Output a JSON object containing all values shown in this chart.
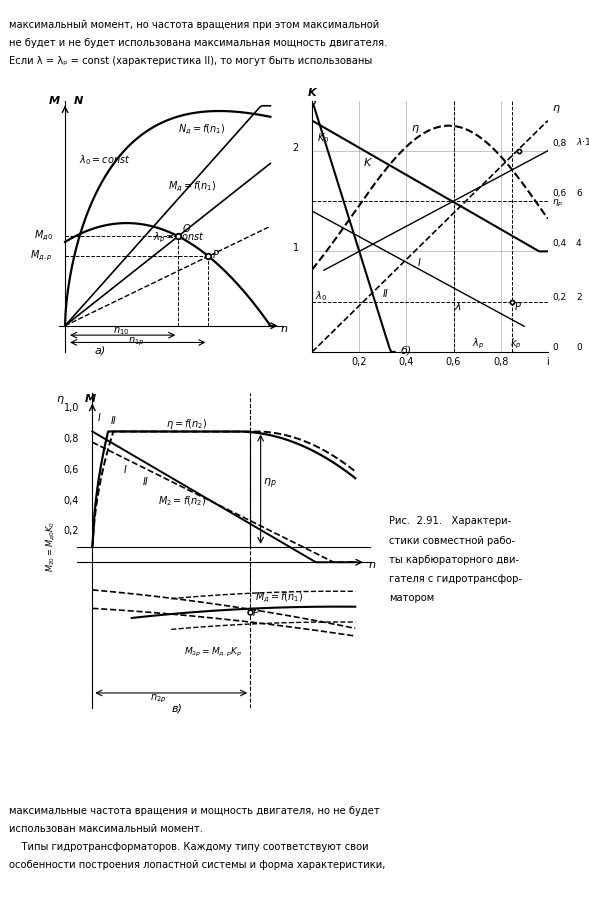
{
  "bg_color": "#ffffff",
  "text_color": "#000000",
  "top_text": [
    "максимальный момент, но частота вращения при этом максимальной",
    "не будет и не будет использована максимальная мощность двигателя.",
    "Если λ = λₚ = const (характеристика II), то могут быть использованы"
  ],
  "bottom_text": [
    "максимальные частота вращения и мощность двигателя, но не будет",
    "использован максимальный момент.",
    "    Типы гидротрансформаторов. Каждому типу соответствуют свои",
    "особенности построения лопастной системы и форма характеристики,"
  ],
  "caption_text": [
    "Рис.  2.91.   Характери-",
    "стики совместной рабо-",
    "ты карбюраторного дви-",
    "гателя с гидротрансфор-",
    "матором"
  ]
}
